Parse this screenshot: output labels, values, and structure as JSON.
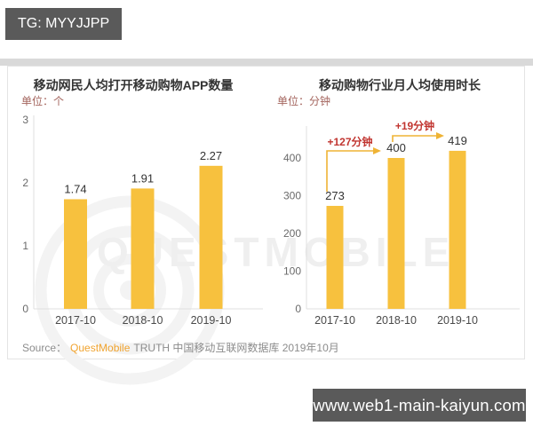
{
  "top_badge": {
    "label": "TG: MYYJJPP"
  },
  "bottom_badge": {
    "label": "www.web1-main-kaiyun.com"
  },
  "watermark": {
    "text": "QUESTMOBILE"
  },
  "source": {
    "prefix": "Source：",
    "brand": "QuestMobile",
    "rest": "TRUTH 中国移动互联网数据库 2019年10月"
  },
  "colors": {
    "bar": "#f7c13e",
    "arrow": "#efb335",
    "annotation_red": "#c13530",
    "unit_red": "#a4655e",
    "badge_bg": "#5a5a5a",
    "brand_orange": "#f0a32f"
  },
  "chart_data": [
    {
      "type": "bar",
      "title": "移动网民人均打开移动购物APP数量",
      "unit_label": "单位：个",
      "categories": [
        "2017-10",
        "2018-10",
        "2019-10"
      ],
      "values": [
        1.74,
        1.91,
        2.27
      ],
      "ylim": [
        0,
        3
      ],
      "yticks": [
        0,
        1,
        2,
        3
      ],
      "grid": false,
      "legend": "none"
    },
    {
      "type": "bar",
      "title": "移动购物行业月人均使用时长",
      "unit_label": "单位：分钟",
      "categories": [
        "2017-10",
        "2018-10",
        "2019-10"
      ],
      "values": [
        273,
        400,
        419
      ],
      "ylim": [
        0,
        470
      ],
      "yticks": [
        0,
        100,
        200,
        300,
        400
      ],
      "annotations": [
        "+127分钟",
        "+19分钟"
      ],
      "grid": false,
      "legend": "none"
    }
  ]
}
